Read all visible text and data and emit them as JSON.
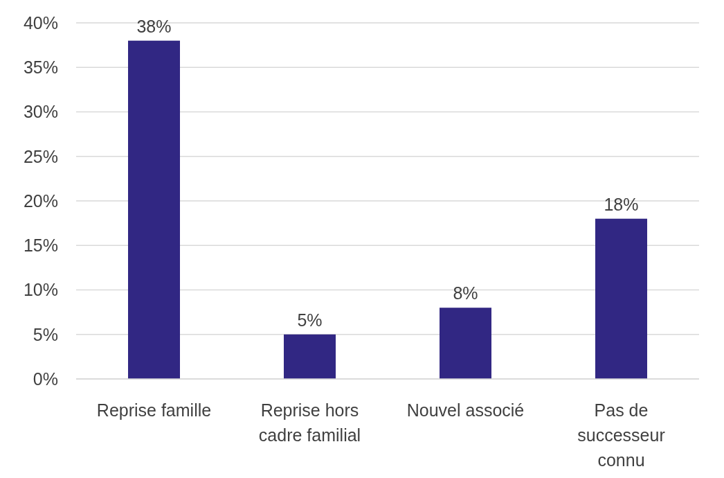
{
  "chart_data": {
    "type": "bar",
    "categories": [
      "Reprise famille",
      "Reprise hors cadre familial",
      "Nouvel associé",
      "Pas de successeur connu"
    ],
    "values": [
      38,
      5,
      8,
      18
    ],
    "value_labels": [
      "38%",
      "5%",
      "8%",
      "18%"
    ],
    "color": "#312783",
    "ylim": [
      0,
      40
    ],
    "yticks": [
      {
        "value": 0,
        "label": "0%"
      },
      {
        "value": 5,
        "label": "5%"
      },
      {
        "value": 10,
        "label": "10%"
      },
      {
        "value": 15,
        "label": "15%"
      },
      {
        "value": 20,
        "label": "20%"
      },
      {
        "value": 25,
        "label": "25%"
      },
      {
        "value": 30,
        "label": "30%"
      },
      {
        "value": 35,
        "label": "35%"
      },
      {
        "value": 40,
        "label": "40%"
      }
    ],
    "grid": "y"
  }
}
